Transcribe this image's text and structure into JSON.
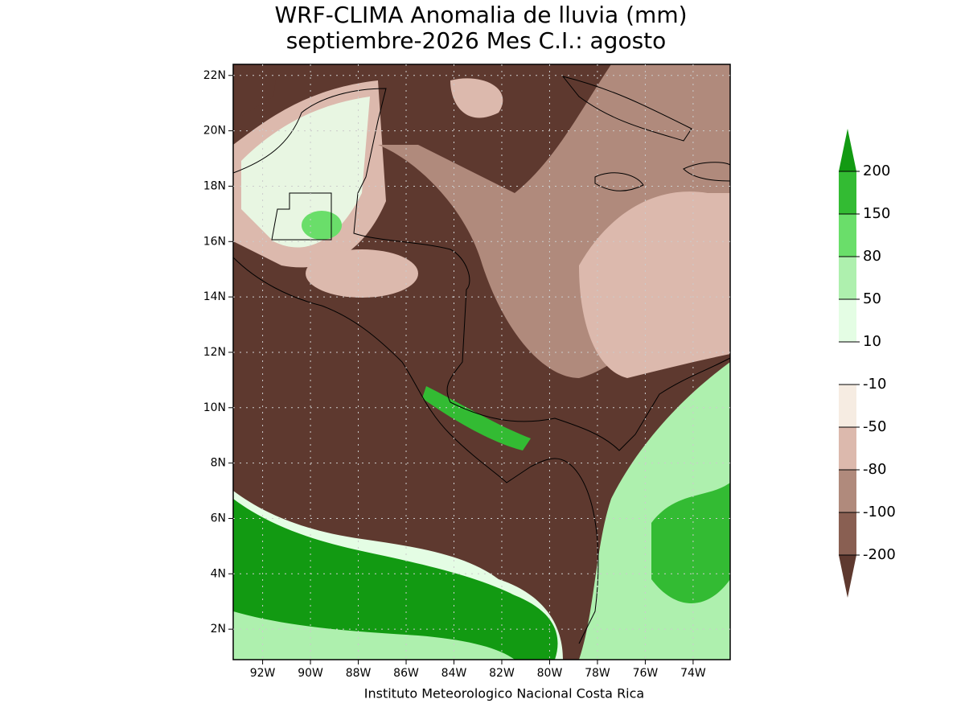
{
  "chart_data": {
    "type": "map",
    "title": "WRF-CLIMA Anomalia de lluvia (mm)",
    "subtitle": "septiembre-2026 Mes C.I.: agosto",
    "footer": "Instituto Meteorologico Nacional Costa Rica",
    "xlim": [
      -93.23,
      -72.45
    ],
    "ylim": [
      0.9,
      22.4
    ],
    "xticks": [
      {
        "value": -92,
        "label": "92W"
      },
      {
        "value": -90,
        "label": "90W"
      },
      {
        "value": -88,
        "label": "88W"
      },
      {
        "value": -86,
        "label": "86W"
      },
      {
        "value": -84,
        "label": "84W"
      },
      {
        "value": -82,
        "label": "82W"
      },
      {
        "value": -80,
        "label": "80W"
      },
      {
        "value": -78,
        "label": "78W"
      },
      {
        "value": -76,
        "label": "76W"
      },
      {
        "value": -74,
        "label": "74W"
      }
    ],
    "yticks": [
      {
        "value": 2,
        "label": "2N"
      },
      {
        "value": 4,
        "label": "4N"
      },
      {
        "value": 6,
        "label": "6N"
      },
      {
        "value": 8,
        "label": "8N"
      },
      {
        "value": 10,
        "label": "10N"
      },
      {
        "value": 12,
        "label": "12N"
      },
      {
        "value": 14,
        "label": "14N"
      },
      {
        "value": 16,
        "label": "16N"
      },
      {
        "value": 18,
        "label": "18N"
      },
      {
        "value": 20,
        "label": "20N"
      },
      {
        "value": 22,
        "label": "22N"
      }
    ],
    "grid": true,
    "colorbar": {
      "levels": [
        200,
        150,
        80,
        50,
        10,
        -10,
        -50,
        -80,
        -100,
        -200
      ],
      "colors": [
        "#129a12",
        "#33bb33",
        "#6ade6a",
        "#aef0ae",
        "#e4fde4",
        "#ffffff",
        "#f6ece2",
        "#dcb9ad",
        "#b08a7c",
        "#895f52",
        "#5e392f"
      ]
    }
  }
}
